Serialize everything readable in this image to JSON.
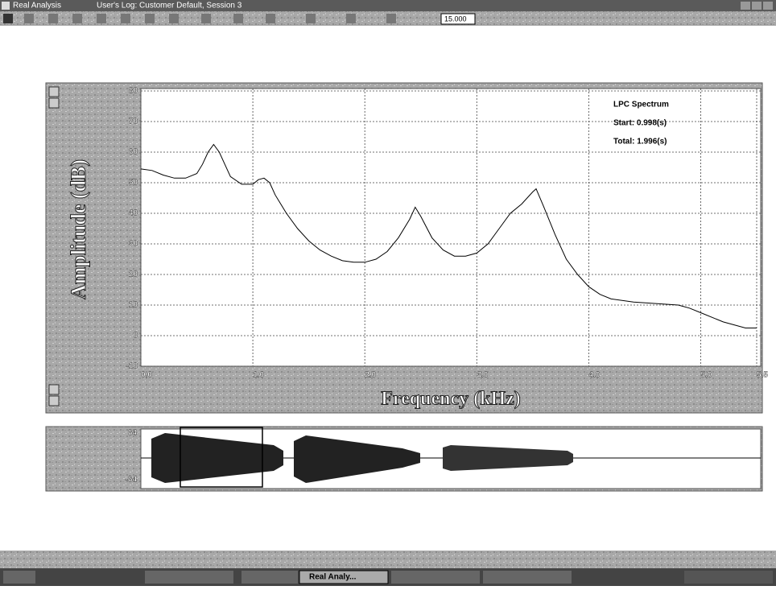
{
  "window": {
    "title": "Real Analysis",
    "log": "User's Log: Customer Default, Session 3"
  },
  "toolbar": {
    "value": "15.000"
  },
  "chart_data": {
    "type": "line",
    "xlabel": "Frequency (kHz)",
    "ylabel": "Amplitude (dB)",
    "annotations": [
      "LPC Spectrum",
      "Start: 0.998(s)",
      "Total: 1.996(s)"
    ],
    "x": [
      0,
      0.1,
      0.2,
      0.3,
      0.4,
      0.5,
      0.55,
      0.6,
      0.65,
      0.7,
      0.75,
      0.8,
      0.9,
      1.0,
      1.05,
      1.1,
      1.15,
      1.2,
      1.3,
      1.4,
      1.5,
      1.6,
      1.7,
      1.8,
      1.9,
      2.0,
      2.1,
      2.2,
      2.3,
      2.4,
      2.45,
      2.5,
      2.6,
      2.7,
      2.8,
      2.9,
      3.0,
      3.1,
      3.2,
      3.3,
      3.4,
      3.5,
      3.53,
      3.6,
      3.7,
      3.8,
      3.9,
      4.0,
      4.1,
      4.2,
      4.4,
      4.6,
      4.8,
      4.9,
      5.0,
      5.2,
      5.4,
      5.5
    ],
    "series": [
      {
        "name": "LPC Spectrum",
        "color": "#000000",
        "values": [
          54.5,
          54,
          52.5,
          51.5,
          51.5,
          53,
          56,
          60,
          62.5,
          60,
          56,
          52,
          49.5,
          49.5,
          51,
          51.5,
          50,
          46,
          40,
          35,
          31,
          28,
          26,
          24.5,
          24,
          24,
          25,
          27.5,
          32,
          38,
          42,
          39,
          32,
          28,
          26,
          26,
          27,
          30,
          35,
          40,
          43,
          47,
          48,
          42,
          33,
          25,
          20,
          16,
          13.5,
          12,
          11,
          10.5,
          10,
          9,
          7.5,
          4.5,
          2.5,
          2.5
        ]
      }
    ],
    "xlim": [
      0,
      5.5
    ],
    "xticks": [
      {
        "value": 0,
        "label": "0.0"
      },
      {
        "value": 1,
        "label": "1.0"
      },
      {
        "value": 2,
        "label": "2.0"
      },
      {
        "value": 3,
        "label": "3.0"
      },
      {
        "value": 4,
        "label": "4.0"
      },
      {
        "value": 5,
        "label": "5.0"
      },
      5.5
    ],
    "ylim": [
      -10,
      80
    ],
    "yticks": [
      -10,
      0,
      10,
      20,
      30,
      40,
      50,
      60,
      70,
      80
    ],
    "grid": true
  },
  "waveform": {
    "top_label": "64",
    "bottom_label": "-64"
  },
  "taskbar": {
    "button": "Real Analy..."
  }
}
